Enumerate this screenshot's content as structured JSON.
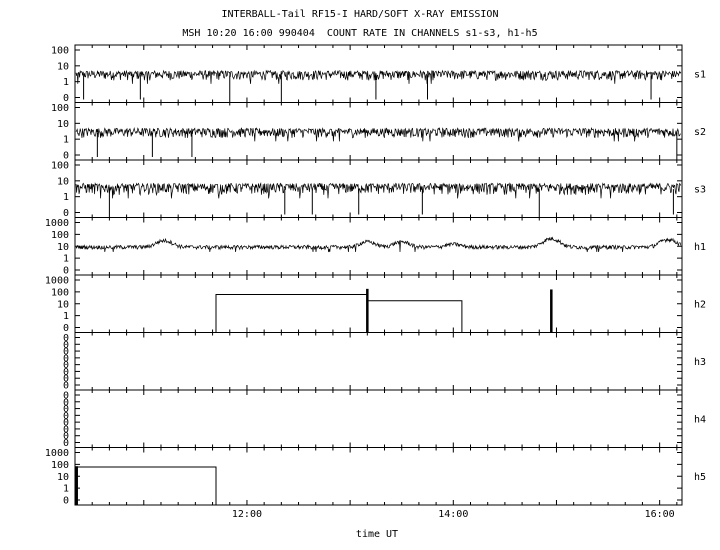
{
  "chart_data": {
    "type": "line",
    "title": "INTERBALL-Tail RF15-I HARD/SOFT X-RAY EMISSION",
    "subtitle": "MSH 10:20 16:00 990404  COUNT RATE IN CHANNELS s1-s3, h1-h5",
    "xlabel": "time UT",
    "xlim": [
      "10:20",
      "16:13"
    ],
    "x_ticks": [
      "12:00",
      "14:00",
      "16:00"
    ],
    "panels": [
      {
        "name": "s1",
        "y_ticks": [
          "100",
          "10",
          "1",
          "0"
        ],
        "baseline": 2.5,
        "noise_low": 1.2,
        "noise_high": 5,
        "dropouts": [
          "10:25",
          "10:58",
          "11:50",
          "12:20",
          "13:15",
          "13:45",
          "15:55"
        ]
      },
      {
        "name": "s2",
        "y_ticks": [
          "100",
          "10",
          "1",
          "0"
        ],
        "baseline": 2.5,
        "noise_low": 1.2,
        "noise_high": 5,
        "dropouts": [
          "10:33",
          "11:05",
          "11:28",
          "16:10"
        ]
      },
      {
        "name": "s3",
        "y_ticks": [
          "100",
          "10",
          "1",
          "0"
        ],
        "baseline": 3,
        "noise_low": 1.3,
        "noise_high": 7,
        "dropouts": [
          "10:40",
          "12:22",
          "12:38",
          "13:05",
          "13:42",
          "14:50",
          "16:08"
        ]
      },
      {
        "name": "h1",
        "y_ticks": [
          "1000",
          "100",
          "10",
          "1",
          "0"
        ],
        "baseline": 8,
        "noise_low": 5.5,
        "noise_high": 12,
        "peaks": [
          {
            "t": "11:12",
            "value": 28
          },
          {
            "t": "13:10",
            "value": 22
          },
          {
            "t": "13:30",
            "value": 22
          },
          {
            "t": "14:00",
            "value": 14
          },
          {
            "t": "14:57",
            "value": 40
          },
          {
            "t": "16:05",
            "value": 35
          }
        ]
      },
      {
        "name": "h2",
        "y_ticks": [
          "1000",
          "100",
          "10",
          "1",
          "0"
        ],
        "segments": [
          {
            "from": "11:42",
            "to": "13:10",
            "value": 60
          },
          {
            "from": "13:10",
            "to": "14:05",
            "value": 18
          }
        ],
        "spikes": [
          {
            "t": "13:10",
            "value": 180
          },
          {
            "t": "14:57",
            "value": 160
          }
        ]
      },
      {
        "name": "h3",
        "y_ticks": [
          "0",
          "0",
          "0",
          "0",
          "0",
          "0",
          "0",
          "0"
        ],
        "segments": []
      },
      {
        "name": "h4",
        "y_ticks": [
          "0",
          "0",
          "0",
          "0",
          "0",
          "0",
          "0",
          "0"
        ],
        "segments": []
      },
      {
        "name": "h5",
        "y_ticks": [
          "1000",
          "100",
          "10",
          "1",
          "0"
        ],
        "segments": [
          {
            "from": "10:20",
            "to": "11:42",
            "value": 60
          }
        ],
        "spikes": [
          {
            "t": "10:21",
            "value": 70
          }
        ]
      }
    ]
  }
}
